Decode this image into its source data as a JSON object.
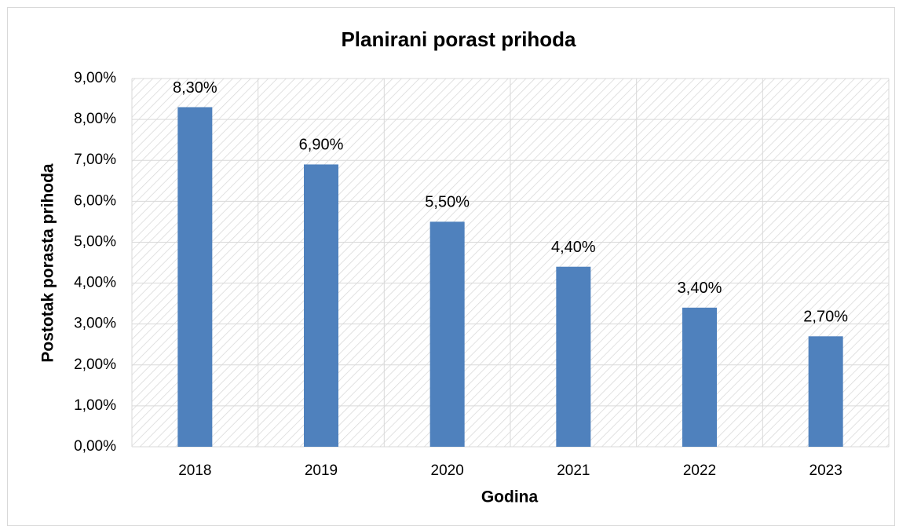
{
  "chart_data": {
    "type": "bar",
    "title": "Planirani porast prihoda",
    "x_label": "Godina",
    "y_label": "Postotak porasta prihoda",
    "categories": [
      "2018",
      "2019",
      "2020",
      "2021",
      "2022",
      "2023"
    ],
    "values": [
      8.3,
      6.9,
      5.5,
      4.4,
      3.4,
      2.7
    ],
    "value_labels": [
      "8,30%",
      "6,90%",
      "5,50%",
      "4,40%",
      "3,40%",
      "2,70%"
    ],
    "color": "#4f81bd",
    "ylim": [
      0,
      9
    ],
    "yticks": [
      {
        "value": 0,
        "label": "0,00%"
      },
      {
        "value": 1,
        "label": "1,00%"
      },
      {
        "value": 2,
        "label": "2,00%"
      },
      {
        "value": 3,
        "label": "3,00%"
      },
      {
        "value": 4,
        "label": "4,00%"
      },
      {
        "value": 5,
        "label": "5,00%"
      },
      {
        "value": 6,
        "label": "6,00%"
      },
      {
        "value": 7,
        "label": "7,00%"
      },
      {
        "value": 8,
        "label": "8,00%"
      },
      {
        "value": 9,
        "label": "9,00%"
      }
    ],
    "grid": true
  }
}
